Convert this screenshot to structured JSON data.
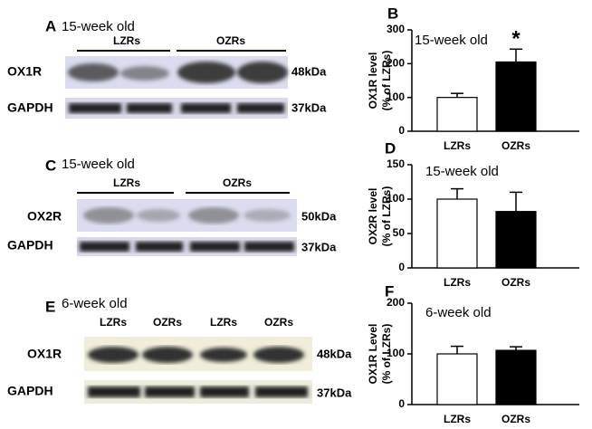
{
  "blots": [
    {
      "label": "A",
      "title": "15-week old",
      "groups": [
        "LZRs",
        "OZRs"
      ],
      "rows": [
        {
          "name": "OX1R",
          "size": "48kDa"
        },
        {
          "name": "GAPDH",
          "size": "37kDa"
        }
      ]
    },
    {
      "label": "C",
      "title": "15-week old",
      "groups": [
        "LZRs",
        "OZRs"
      ],
      "rows": [
        {
          "name": "OX2R",
          "size": "50kDa"
        },
        {
          "name": "GAPDH",
          "size": "37kDa"
        }
      ]
    },
    {
      "label": "E",
      "title": "6-week old",
      "lanes": [
        "LZRs",
        "OZRs",
        "LZRs",
        "OZRs"
      ],
      "rows": [
        {
          "name": "OX1R",
          "size": "48kDa"
        },
        {
          "name": "GAPDH",
          "size": "37kDa"
        }
      ]
    }
  ],
  "chart_data": [
    {
      "type": "bar",
      "label": "B",
      "title": "15-week old",
      "ylabel": [
        "OX1R level",
        "(% of LZRs)"
      ],
      "categories": [
        "LZRs",
        "OZRs"
      ],
      "values": [
        100,
        205
      ],
      "errors": [
        12,
        38
      ],
      "colors": [
        "#ffffff",
        "#000000"
      ],
      "annotation": "*",
      "ylim": [
        0,
        300
      ],
      "yticks": [
        0,
        100,
        200,
        300
      ]
    },
    {
      "type": "bar",
      "label": "D",
      "title": "15-week old",
      "ylabel": [
        "OX2R level",
        "(% of LZRs)"
      ],
      "categories": [
        "LZRs",
        "OZRs"
      ],
      "values": [
        100,
        82
      ],
      "errors": [
        15,
        28
      ],
      "colors": [
        "#ffffff",
        "#000000"
      ],
      "ylim": [
        0,
        150
      ],
      "yticks": [
        0,
        50,
        100,
        150
      ]
    },
    {
      "type": "bar",
      "label": "F",
      "title": "6-week old",
      "ylabel": [
        "OX1R Level",
        "(% of LZRs)"
      ],
      "categories": [
        "LZRs",
        "OZRs"
      ],
      "values": [
        100,
        107
      ],
      "errors": [
        15,
        7
      ],
      "colors": [
        "#ffffff",
        "#000000"
      ],
      "ylim": [
        0,
        200
      ],
      "yticks": [
        0,
        100,
        200
      ]
    }
  ]
}
